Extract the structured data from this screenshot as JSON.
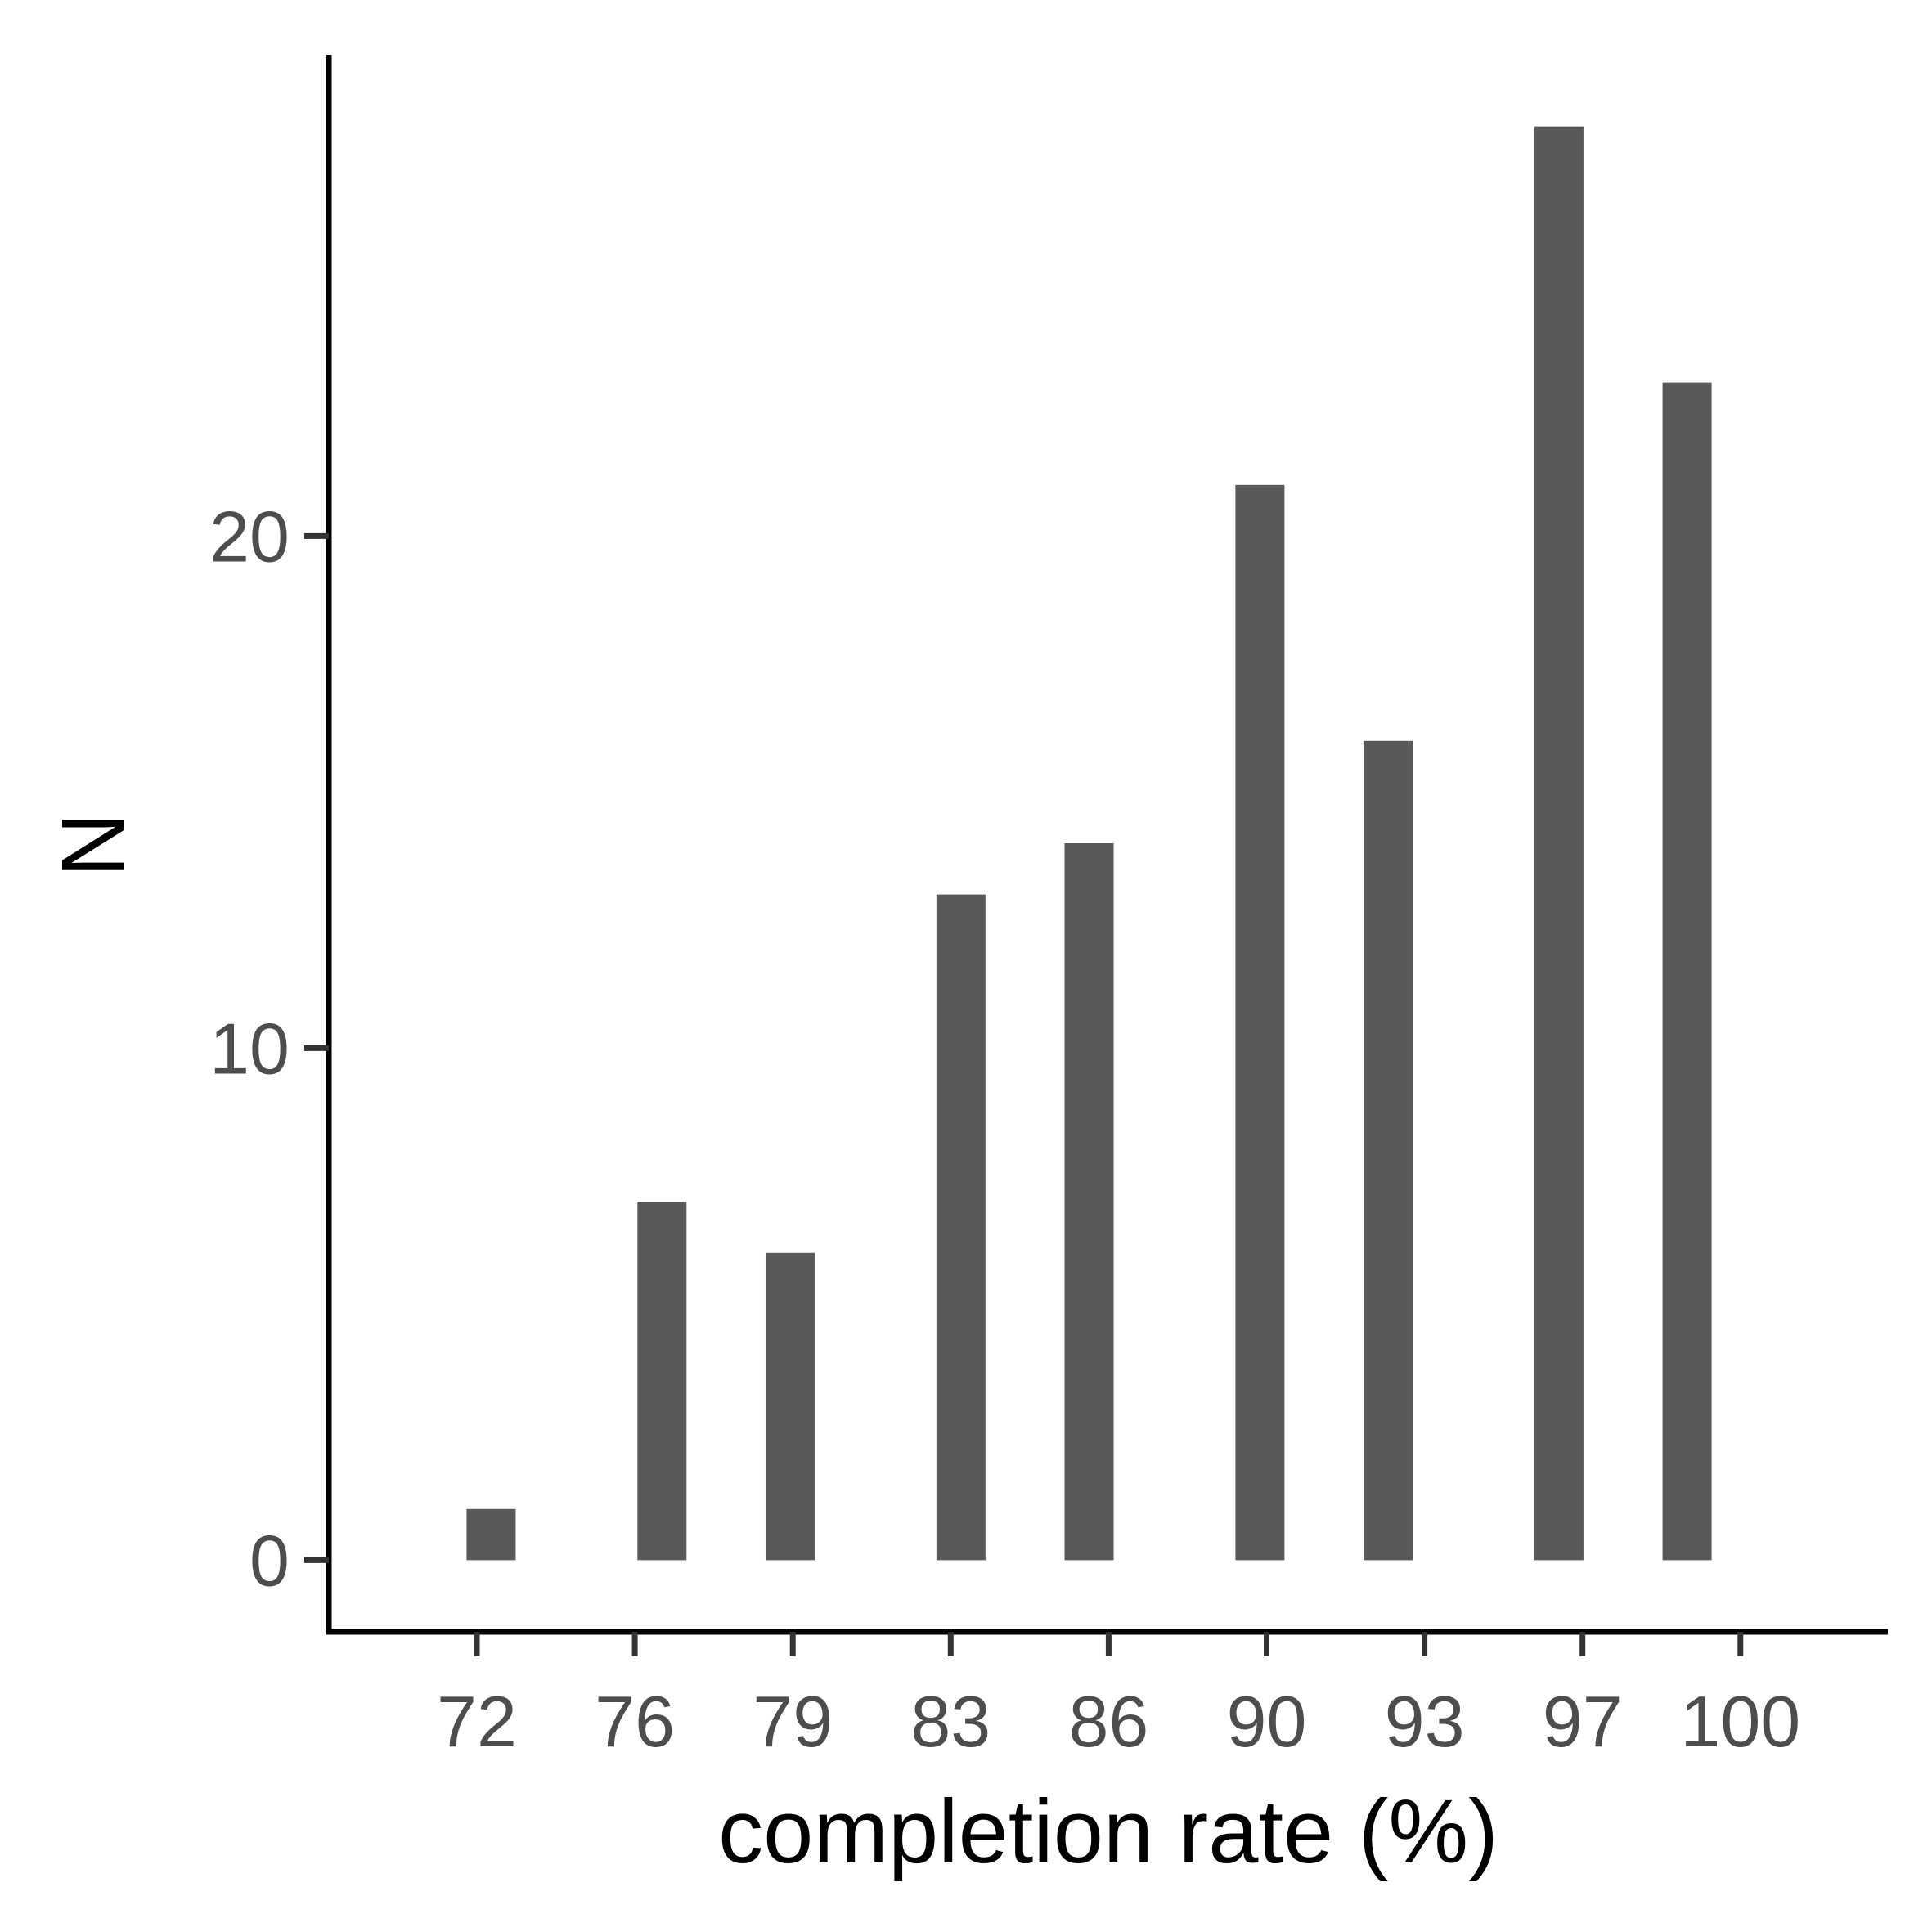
{
  "chart_data": {
    "type": "bar",
    "xlabel": "completion rate (%)",
    "ylabel": "N",
    "x_ticks": [
      "72",
      "76",
      "79",
      "83",
      "86",
      "90",
      "93",
      "97",
      "100"
    ],
    "y_ticks": [
      0,
      10,
      20
    ],
    "bars": [
      {
        "x": 72,
        "value": 1
      },
      {
        "x": 76,
        "value": 7
      },
      {
        "x": 79,
        "value": 6
      },
      {
        "x": 83,
        "value": 13
      },
      {
        "x": 86,
        "value": 14
      },
      {
        "x": 90,
        "value": 21
      },
      {
        "x": 93,
        "value": 16
      },
      {
        "x": 97,
        "value": 28
      },
      {
        "x": 100,
        "value": 23
      }
    ],
    "xlim": [
      68.2,
      104.7
    ],
    "ylim": [
      -1.4,
      29.4
    ],
    "grid": false,
    "colors": {
      "bar": "#595959",
      "axis": "#000000",
      "tick_text": "#4d4d4d"
    }
  }
}
